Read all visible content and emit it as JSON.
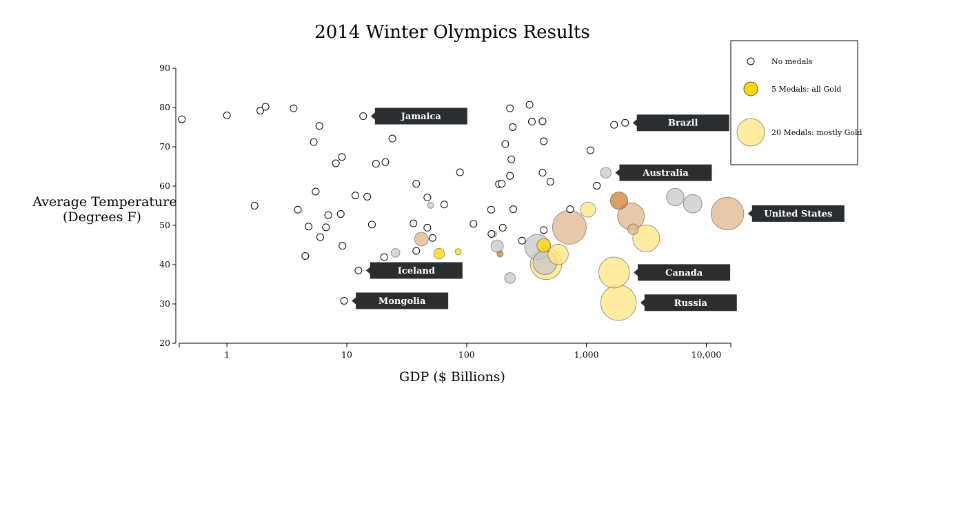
{
  "chart_data": {
    "type": "scatter",
    "title": "2014 Winter Olympics Results",
    "xlabel": "GDP ($ Billions)",
    "ylabel": [
      "Average Temperature",
      "(Degrees F)"
    ],
    "x_scale": "log",
    "xlim": [
      0.4,
      16000
    ],
    "ylim": [
      20,
      90
    ],
    "x_ticks": [
      {
        "value": 1,
        "label": "1"
      },
      {
        "value": 10,
        "label": "10"
      },
      {
        "value": 100,
        "label": "100"
      },
      {
        "value": 1000,
        "label": "1,000"
      },
      {
        "value": 10000,
        "label": "10,000"
      }
    ],
    "y_ticks": [
      20,
      30,
      40,
      50,
      60,
      70,
      80,
      90
    ],
    "colors": {
      "none": "#ffffff",
      "gold": "#FFD700",
      "gold_light": "#FFE680",
      "silver": "#C8C8C8",
      "bronze": "#CD7F32",
      "bronze_light": "#E2B48C",
      "callout": "#2a2e31"
    },
    "legend": {
      "position": "top-right",
      "items": [
        {
          "label": "No medals",
          "medals": 0,
          "color": "none"
        },
        {
          "label": "5 Medals: all Gold",
          "medals": 5,
          "color": "gold"
        },
        {
          "label": "20 Medals: mostly Gold",
          "medals": 20,
          "color": "gold_light"
        }
      ]
    },
    "callouts": [
      {
        "label": "Jamaica",
        "gdp": 13.7,
        "temp": 77.8
      },
      {
        "label": "Brazil",
        "gdp": 2100,
        "temp": 76.1
      },
      {
        "label": "Australia",
        "gdp": 1450,
        "temp": 63.4
      },
      {
        "label": "United States",
        "gdp": 15000,
        "temp": 53.0
      },
      {
        "label": "Iceland",
        "gdp": 12.5,
        "temp": 38.5
      },
      {
        "label": "Canada",
        "gdp": 1700,
        "temp": 38.0
      },
      {
        "label": "Mongolia",
        "gdp": 9.5,
        "temp": 30.8
      },
      {
        "label": "Russia",
        "gdp": 1850,
        "temp": 30.3
      }
    ],
    "points": [
      {
        "gdp": 0.42,
        "temp": 77.0,
        "medals": 0,
        "color": "none"
      },
      {
        "gdp": 1.0,
        "temp": 78.0,
        "medals": 0,
        "color": "none"
      },
      {
        "gdp": 1.9,
        "temp": 79.2,
        "medals": 0,
        "color": "none"
      },
      {
        "gdp": 2.1,
        "temp": 80.2,
        "medals": 0,
        "color": "none"
      },
      {
        "gdp": 3.6,
        "temp": 79.8,
        "medals": 0,
        "color": "none"
      },
      {
        "gdp": 13.7,
        "temp": 77.8,
        "medals": 0,
        "color": "none"
      },
      {
        "gdp": 5.9,
        "temp": 75.3,
        "medals": 0,
        "color": "none"
      },
      {
        "gdp": 5.3,
        "temp": 71.2,
        "medals": 0,
        "color": "none"
      },
      {
        "gdp": 24,
        "temp": 72.1,
        "medals": 0,
        "color": "none"
      },
      {
        "gdp": 9.1,
        "temp": 67.4,
        "medals": 0,
        "color": "none"
      },
      {
        "gdp": 8.1,
        "temp": 65.8,
        "medals": 0,
        "color": "none"
      },
      {
        "gdp": 17.5,
        "temp": 65.7,
        "medals": 0,
        "color": "none"
      },
      {
        "gdp": 21,
        "temp": 66.1,
        "medals": 0,
        "color": "none"
      },
      {
        "gdp": 88,
        "temp": 63.5,
        "medals": 0,
        "color": "none"
      },
      {
        "gdp": 38,
        "temp": 60.6,
        "medals": 0,
        "color": "none"
      },
      {
        "gdp": 5.5,
        "temp": 58.6,
        "medals": 0,
        "color": "none"
      },
      {
        "gdp": 11.8,
        "temp": 57.6,
        "medals": 0,
        "color": "none"
      },
      {
        "gdp": 14.8,
        "temp": 57.3,
        "medals": 0,
        "color": "none"
      },
      {
        "gdp": 47,
        "temp": 57.1,
        "medals": 0,
        "color": "none"
      },
      {
        "gdp": 1.7,
        "temp": 55.0,
        "medals": 0,
        "color": "none"
      },
      {
        "gdp": 3.9,
        "temp": 54.0,
        "medals": 0,
        "color": "none"
      },
      {
        "gdp": 65,
        "temp": 55.3,
        "medals": 0,
        "color": "none"
      },
      {
        "gdp": 50,
        "temp": 55.1,
        "medals": 1,
        "color": "silver"
      },
      {
        "gdp": 7.0,
        "temp": 52.6,
        "medals": 0,
        "color": "none"
      },
      {
        "gdp": 8.9,
        "temp": 52.9,
        "medals": 0,
        "color": "none"
      },
      {
        "gdp": 4.8,
        "temp": 49.7,
        "medals": 0,
        "color": "none"
      },
      {
        "gdp": 6.7,
        "temp": 49.5,
        "medals": 0,
        "color": "none"
      },
      {
        "gdp": 16.2,
        "temp": 50.2,
        "medals": 0,
        "color": "none"
      },
      {
        "gdp": 36,
        "temp": 50.5,
        "medals": 0,
        "color": "none"
      },
      {
        "gdp": 47,
        "temp": 49.4,
        "medals": 0,
        "color": "none"
      },
      {
        "gdp": 114,
        "temp": 50.4,
        "medals": 0,
        "color": "none"
      },
      {
        "gdp": 200,
        "temp": 49.4,
        "medals": 0,
        "color": "none"
      },
      {
        "gdp": 6.0,
        "temp": 47.0,
        "medals": 0,
        "color": "none"
      },
      {
        "gdp": 42,
        "temp": 46.5,
        "medals": 5,
        "color": "bronze_light"
      },
      {
        "gdp": 52,
        "temp": 46.8,
        "medals": 0,
        "color": "none"
      },
      {
        "gdp": 9.2,
        "temp": 44.8,
        "medals": 0,
        "color": "none"
      },
      {
        "gdp": 4.5,
        "temp": 42.2,
        "medals": 0,
        "color": "none"
      },
      {
        "gdp": 20.5,
        "temp": 41.9,
        "medals": 0,
        "color": "none"
      },
      {
        "gdp": 25.5,
        "temp": 43.0,
        "medals": 2,
        "color": "silver"
      },
      {
        "gdp": 38,
        "temp": 43.5,
        "medals": 0,
        "color": "none"
      },
      {
        "gdp": 59,
        "temp": 42.8,
        "medals": 3,
        "color": "gold"
      },
      {
        "gdp": 85,
        "temp": 43.3,
        "medals": 1,
        "color": "gold"
      },
      {
        "gdp": 12.5,
        "temp": 38.5,
        "medals": 0,
        "color": "none"
      },
      {
        "gdp": 9.5,
        "temp": 30.8,
        "medals": 0,
        "color": "none"
      },
      {
        "gdp": 161,
        "temp": 47.8,
        "medals": 0,
        "color": "none"
      },
      {
        "gdp": 168,
        "temp": 47.8,
        "medals": 1,
        "color": "gold"
      },
      {
        "gdp": 180,
        "temp": 44.7,
        "medals": 4,
        "color": "silver"
      },
      {
        "gdp": 190,
        "temp": 42.7,
        "medals": 1,
        "color": "bronze"
      },
      {
        "gdp": 230,
        "temp": 36.6,
        "medals": 3,
        "color": "silver"
      },
      {
        "gdp": 160,
        "temp": 54.0,
        "medals": 0,
        "color": "none"
      },
      {
        "gdp": 245,
        "temp": 54.1,
        "medals": 0,
        "color": "none"
      },
      {
        "gdp": 186,
        "temp": 60.5,
        "medals": 0,
        "color": "none"
      },
      {
        "gdp": 196,
        "temp": 60.6,
        "medals": 0,
        "color": "none"
      },
      {
        "gdp": 230,
        "temp": 62.6,
        "medals": 0,
        "color": "none"
      },
      {
        "gdp": 236,
        "temp": 66.8,
        "medals": 0,
        "color": "none"
      },
      {
        "gdp": 210,
        "temp": 70.7,
        "medals": 0,
        "color": "none"
      },
      {
        "gdp": 242,
        "temp": 75.0,
        "medals": 0,
        "color": "none"
      },
      {
        "gdp": 230,
        "temp": 79.8,
        "medals": 0,
        "color": "none"
      },
      {
        "gdp": 335,
        "temp": 80.7,
        "medals": 0,
        "color": "none"
      },
      {
        "gdp": 350,
        "temp": 76.4,
        "medals": 0,
        "color": "none"
      },
      {
        "gdp": 430,
        "temp": 76.5,
        "medals": 0,
        "color": "none"
      },
      {
        "gdp": 440,
        "temp": 71.4,
        "medals": 0,
        "color": "none"
      },
      {
        "gdp": 430,
        "temp": 63.4,
        "medals": 0,
        "color": "none"
      },
      {
        "gdp": 500,
        "temp": 61.1,
        "medals": 0,
        "color": "none"
      },
      {
        "gdp": 290,
        "temp": 46.1,
        "medals": 0,
        "color": "none"
      },
      {
        "gdp": 440,
        "temp": 48.8,
        "medals": 0,
        "color": "none"
      },
      {
        "gdp": 1080,
        "temp": 69.1,
        "medals": 0,
        "color": "none"
      },
      {
        "gdp": 1220,
        "temp": 60.1,
        "medals": 0,
        "color": "none"
      },
      {
        "gdp": 1700,
        "temp": 75.6,
        "medals": 0,
        "color": "none"
      },
      {
        "gdp": 2100,
        "temp": 76.1,
        "medals": 0,
        "color": "none"
      },
      {
        "gdp": 730,
        "temp": 54.1,
        "medals": 0,
        "color": "none"
      },
      {
        "gdp": 1450,
        "temp": 63.4,
        "medals": 3,
        "color": "silver"
      },
      {
        "gdp": 390,
        "temp": 44.5,
        "medals": 17,
        "color": "silver"
      },
      {
        "gdp": 460,
        "temp": 40.2,
        "medals": 26,
        "color": "gold_light"
      },
      {
        "gdp": 450,
        "temp": 40.5,
        "medals": 15,
        "color": "silver"
      },
      {
        "gdp": 440,
        "temp": 44.9,
        "medals": 5,
        "color": "gold"
      },
      {
        "gdp": 580,
        "temp": 42.6,
        "medals": 11,
        "color": "gold_light"
      },
      {
        "gdp": 720,
        "temp": 49.5,
        "medals": 30,
        "color": "bronze_light"
      },
      {
        "gdp": 1030,
        "temp": 54.0,
        "medals": 6,
        "color": "gold_light"
      },
      {
        "gdp": 1870,
        "temp": 56.3,
        "medals": 8,
        "color": "bronze"
      },
      {
        "gdp": 2350,
        "temp": 52.3,
        "medals": 19,
        "color": "bronze_light"
      },
      {
        "gdp": 2450,
        "temp": 49.0,
        "medals": 3,
        "color": "bronze_light"
      },
      {
        "gdp": 3150,
        "temp": 46.7,
        "medals": 19,
        "color": "gold_light"
      },
      {
        "gdp": 5500,
        "temp": 57.2,
        "medals": 8,
        "color": "silver"
      },
      {
        "gdp": 7700,
        "temp": 55.5,
        "medals": 9,
        "color": "silver"
      },
      {
        "gdp": 15000,
        "temp": 53.0,
        "medals": 28,
        "color": "bronze_light"
      },
      {
        "gdp": 1700,
        "temp": 38.0,
        "medals": 25,
        "color": "gold_light"
      },
      {
        "gdp": 1850,
        "temp": 30.3,
        "medals": 33,
        "color": "gold_light"
      }
    ]
  }
}
